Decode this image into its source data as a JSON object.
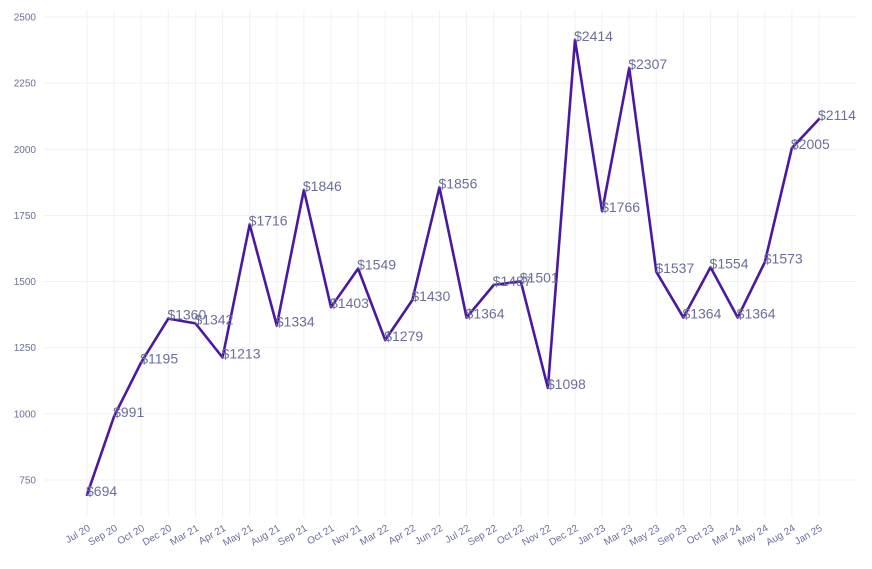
{
  "chart_data": {
    "type": "line",
    "title": "",
    "xlabel": "",
    "ylabel": "",
    "ylim": [
      700,
      2500
    ],
    "yticks": [
      750,
      1000,
      1250,
      1500,
      1750,
      2000,
      2250,
      2500
    ],
    "grid": true,
    "legend": "none",
    "line_color": "#4b18a0",
    "text_color": "#6b6e9b",
    "categories": [
      "Jul 20",
      "Sep 20",
      "Oct 20",
      "Dec 20",
      "Mar 21",
      "Apr 21",
      "May 21",
      "Aug 21",
      "Sep 21",
      "Oct 21",
      "Nov 21",
      "Mar 22",
      "Apr 22",
      "Jun 22",
      "Jul 22",
      "Sep 22",
      "Oct 22",
      "Nov 22",
      "Dec 22",
      "Jan 23",
      "Mar 23",
      "May 23",
      "Sep 23",
      "Oct 23",
      "Mar 24",
      "May 24",
      "Aug 24",
      "Jan 25"
    ],
    "values": [
      694,
      991,
      1195,
      1360,
      1342,
      1213,
      1716,
      1334,
      1846,
      1403,
      1549,
      1279,
      1430,
      1856,
      1364,
      1487,
      1501,
      1098,
      2414,
      1766,
      2307,
      1537,
      1364,
      1554,
      1364,
      1573,
      2005,
      2114
    ],
    "data_labels": [
      "$694",
      "$991",
      "$1195",
      "$1360",
      "$1342",
      "$1213",
      "$1716",
      "$1334",
      "$1846",
      "$1403",
      "$1549",
      "$1279",
      "$1430",
      "$1856",
      "$1364",
      "$1487",
      "$1501",
      "$1098",
      "$2414",
      "$1766",
      "$2307",
      "$1537",
      "$1364",
      "$1554",
      "$1364",
      "$1573",
      "$2005",
      "$2114"
    ]
  }
}
